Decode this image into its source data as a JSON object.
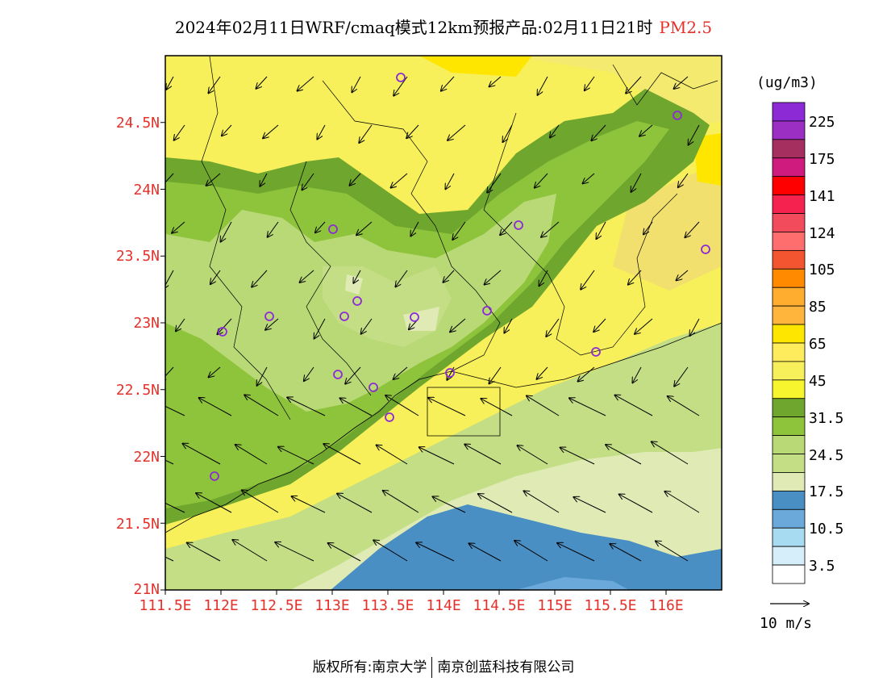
{
  "title": {
    "text": "2024年02月11日WRF/cmaq模式12km预报产品:02月11日21时",
    "pollutant": "PM2.5"
  },
  "map": {
    "lat_ticks": [
      "24.5N",
      "24N",
      "23.5N",
      "23N",
      "22.5N",
      "22N",
      "21.5N",
      "21N"
    ],
    "lon_ticks": [
      "111.5E",
      "112E",
      "112.5E",
      "113E",
      "113.5E",
      "114E",
      "114.5E",
      "115E",
      "115.5E",
      "116E"
    ],
    "lat_range": [
      21.0,
      25.0
    ],
    "lon_range": [
      111.5,
      116.5
    ]
  },
  "colorbar": {
    "unit": "(ug/m3)",
    "labels": [
      "225",
      "175",
      "141",
      "124",
      "105",
      "85",
      "65",
      "45",
      "31.5",
      "24.5",
      "17.5",
      "10.5",
      "3.5"
    ],
    "colors": [
      "#8c2bd6",
      "#9b2fc4",
      "#a53060",
      "#cf1b7e",
      "#ff0000",
      "#f5214f",
      "#f24b5b",
      "#ff6e6e",
      "#f25530",
      "#ff8a00",
      "#ffad2e",
      "#ffb53c",
      "#ffe600",
      "#ffec5c",
      "#f7f05a",
      "#f7f52e",
      "#6fa62e",
      "#8ec43c",
      "#b9d976",
      "#c4de86",
      "#dfeab5",
      "#4a8fc4",
      "#6aa9da",
      "#a7dbf2",
      "#d6eefa",
      "#ffffff"
    ]
  },
  "wind_reference": {
    "label": "10 m/s"
  },
  "footer": {
    "left": "版权所有:南京大学",
    "right": "南京创蓝科技有限公司"
  }
}
